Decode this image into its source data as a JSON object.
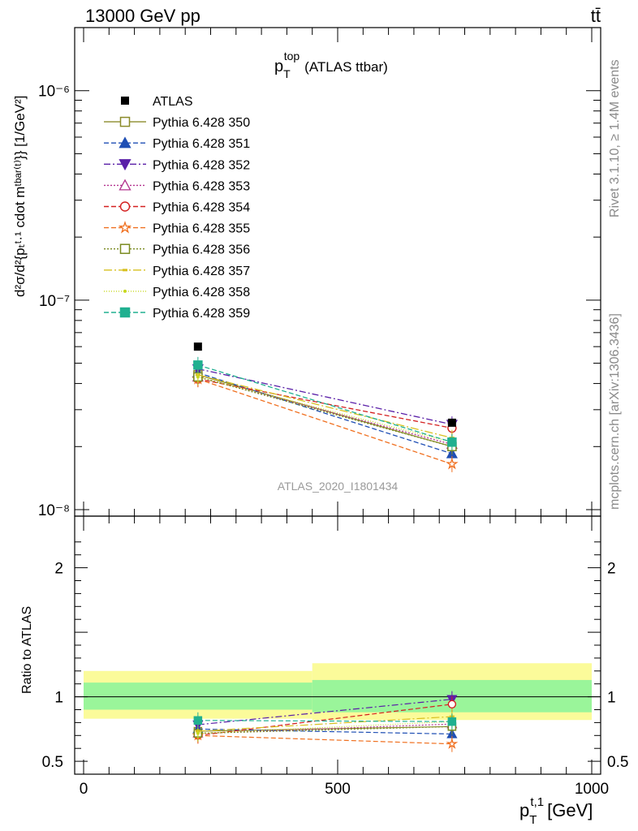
{
  "header": {
    "left": "13000 GeV pp",
    "right": "tt̄"
  },
  "side_labels": {
    "rivet": "Rivet 3.1.10, ≥ 1.4M events",
    "mcplots": "mcplots.cern.ch [arXiv:1306.3436]"
  },
  "chart_data": {
    "type": "scatter",
    "title": "(ATLAS ttbar)",
    "title_symbol": "p",
    "title_sup": "top",
    "title_sub": "T",
    "watermark": "ATLAS_2020_I1801434",
    "main_ylabel": "d²σ/d²{pₜᵗ·¹ cdot mᵗᵇᵃʳ⁽ᵗ⁾}} [1/GeV²]",
    "ratio_ylabel": "Ratio to ATLAS",
    "xlabel": "[GeV]",
    "xlabel_symbol": "p",
    "xlabel_sup": "t,1",
    "xlabel_sub": "T",
    "xlim": [
      0,
      1000
    ],
    "ylim": [
      1e-08,
      2e-06
    ],
    "yscale": "log",
    "ratio_ylim": [
      0.4,
      2.4
    ],
    "x_ticks": [
      "0",
      "500",
      "1000"
    ],
    "y_ticks": [
      "10⁻⁸",
      "10⁻⁷",
      "10⁻⁶"
    ],
    "ratio_ticks": [
      "0.5",
      "1",
      "2"
    ],
    "x": [
      225,
      725
    ],
    "bins": [
      [
        0,
        450
      ],
      [
        450,
        1000
      ]
    ],
    "legend_position": "top-left",
    "data": {
      "name": "ATLAS",
      "values": [
        6e-08,
        2.6e-08
      ],
      "band_inner": [
        [
          0.9,
          1.11
        ],
        [
          0.88,
          1.13
        ]
      ],
      "band_outer": [
        [
          0.83,
          1.2
        ],
        [
          0.82,
          1.26
        ]
      ]
    },
    "series": [
      {
        "name": "Pythia 6.428 350",
        "color": "#8b8b2a",
        "dash": "",
        "marker": "open-square",
        "values": [
          4.4e-08,
          2e-08
        ]
      },
      {
        "name": "Pythia 6.428 351",
        "color": "#1f4fb4",
        "dash": "6,3",
        "marker": "filled-triangle-up",
        "values": [
          4.5e-08,
          1.85e-08
        ]
      },
      {
        "name": "Pythia 6.428 352",
        "color": "#5a1fa8",
        "dash": "8,3,2,3",
        "marker": "filled-triangle-down",
        "values": [
          4.7e-08,
          2.55e-08
        ]
      },
      {
        "name": "Pythia 6.428 353",
        "color": "#b3338f",
        "dash": "2,2",
        "marker": "open-triangle-up",
        "values": [
          4.3e-08,
          2.05e-08
        ]
      },
      {
        "name": "Pythia 6.428 354",
        "color": "#d42020",
        "dash": "6,3",
        "marker": "open-circle",
        "values": [
          4.2e-08,
          2.45e-08
        ]
      },
      {
        "name": "Pythia 6.428 355",
        "color": "#f07020",
        "dash": "6,3",
        "marker": "open-star",
        "values": [
          4.2e-08,
          1.65e-08
        ]
      },
      {
        "name": "Pythia 6.428 356",
        "color": "#7a8a20",
        "dash": "2,2",
        "marker": "open-square",
        "values": [
          4.3e-08,
          2e-08
        ]
      },
      {
        "name": "Pythia 6.428 357",
        "color": "#d8c020",
        "dash": "10,3,2,3",
        "marker": "dash-dot",
        "values": [
          4.4e-08,
          2.2e-08
        ]
      },
      {
        "name": "Pythia 6.428 358",
        "color": "#c8d820",
        "dash": "1,2",
        "marker": "small-dot",
        "values": [
          4.3e-08,
          2.1e-08
        ]
      },
      {
        "name": "Pythia 6.428 359",
        "color": "#20b090",
        "dash": "6,3",
        "marker": "filled-square",
        "values": [
          4.9e-08,
          2.1e-08
        ]
      }
    ]
  }
}
